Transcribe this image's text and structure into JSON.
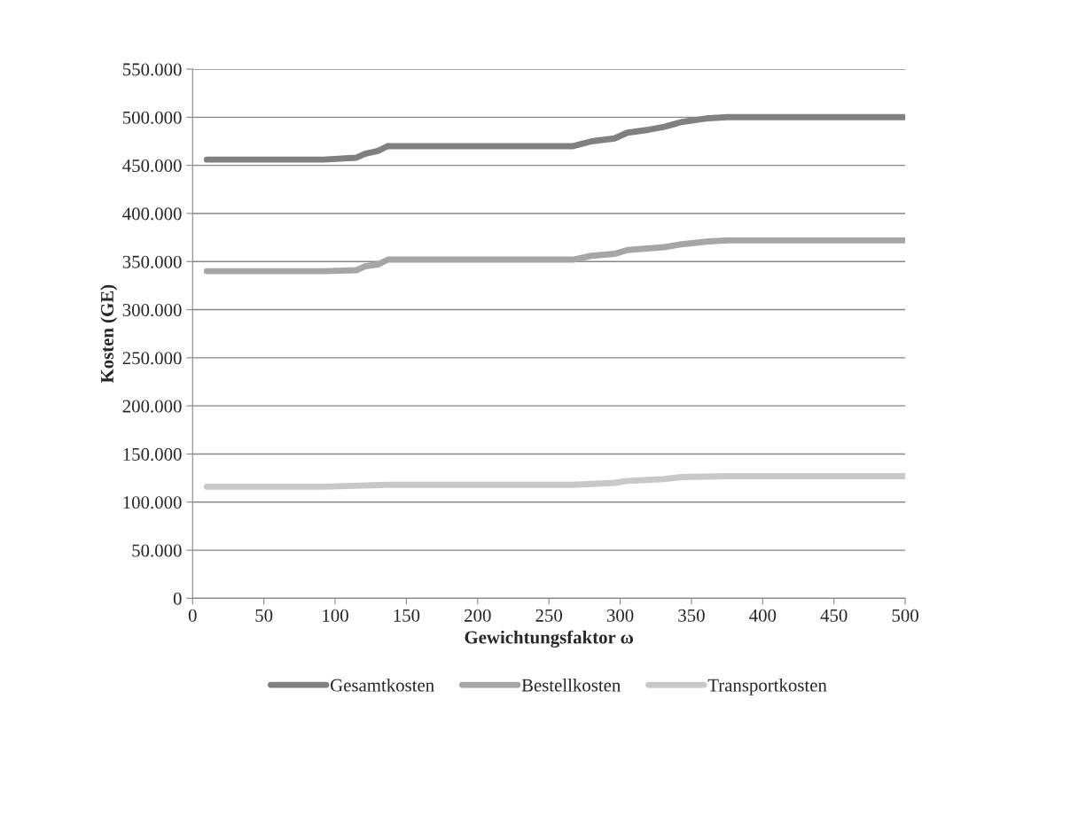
{
  "chart_data": {
    "type": "line",
    "xlabel": "Gewichtungsfaktor ω",
    "ylabel": "Kosten (GE)",
    "xlim": [
      0,
      500
    ],
    "xticks": [
      0,
      50,
      100,
      150,
      200,
      250,
      300,
      350,
      400,
      450,
      500
    ],
    "ylim": [
      0,
      550000
    ],
    "yticks": [
      0,
      {
        "value": 50000,
        "label": "50.000"
      },
      {
        "value": 100000,
        "label": "100.000"
      },
      {
        "value": 150000,
        "label": "150.000"
      },
      {
        "value": 200000,
        "label": "200.000"
      },
      {
        "value": 250000,
        "label": "250.000"
      },
      {
        "value": 300000,
        "label": "300.000"
      },
      {
        "value": 350000,
        "label": "350.000"
      },
      {
        "value": 400000,
        "label": "400.000"
      },
      {
        "value": 450000,
        "label": "450.000"
      },
      {
        "value": 500000,
        "label": "500.000"
      },
      {
        "value": 550000,
        "label": "550.000"
      }
    ],
    "grid": "y",
    "legend": "bottom",
    "marker": "none",
    "line_style": "solid",
    "series": [
      {
        "name": "Gesamtkosten",
        "color": "#808080",
        "x": [
          10,
          92,
          115,
          121,
          130,
          137,
          267,
          280,
          296,
          305,
          320,
          331,
          343,
          362,
          375,
          500
        ],
        "values": [
          456000,
          456000,
          458000,
          462000,
          465000,
          470000,
          470000,
          475000,
          478000,
          484000,
          487000,
          490000,
          495000,
          499000,
          500000,
          500000
        ]
      },
      {
        "name": "Bestellkosten",
        "color": "#a6a6a6",
        "x": [
          10,
          92,
          115,
          121,
          130,
          137,
          267,
          280,
          296,
          305,
          331,
          343,
          362,
          375,
          500
        ],
        "values": [
          340000,
          340000,
          341000,
          345000,
          347000,
          352000,
          352000,
          356000,
          358000,
          362000,
          365000,
          368000,
          371000,
          372000,
          372000
        ]
      },
      {
        "name": "Transportkosten",
        "color": "#c8c8c8",
        "x": [
          10,
          92,
          137,
          267,
          296,
          305,
          331,
          343,
          375,
          500
        ],
        "values": [
          116000,
          116000,
          118000,
          118000,
          120000,
          122000,
          124000,
          126000,
          127000,
          127000
        ]
      }
    ]
  }
}
